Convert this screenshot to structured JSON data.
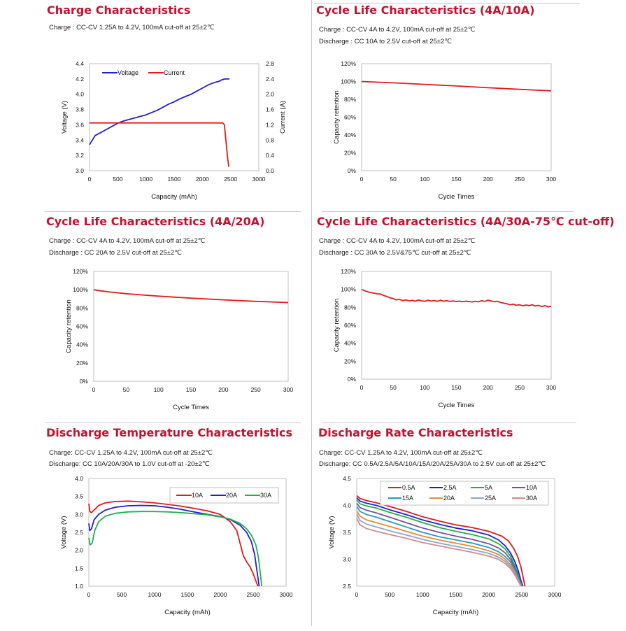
{
  "panels": [
    {
      "title": "Charge Characteristics",
      "notes": [
        "Charge : CC-CV 1.25A to 4.2V, 100mA cut-off at 25±2℃"
      ]
    },
    {
      "title": "Cycle Life Characteristics (4A/10A)",
      "notes": [
        "Charge : CC-CV 4A to 4.2V, 100mA cut-off at 25±2℃",
        "Discharge : CC 10A to 2.5V cut-off at 25±2℃"
      ]
    },
    {
      "title": "Cycle Life Characteristics (4A/20A)",
      "notes": [
        "Charge : CC-CV 4A to 4.2V, 100mA cut-off at 25±2℃",
        "Discharge : CC 20A to 2.5V cut-off at 25±2℃"
      ]
    },
    {
      "title": "Cycle Life Characteristics (4A/30A-75℃ cut-off)",
      "notes": [
        "Charge : CC-CV 4A to 4.2V, 100mA cut-off at 25±2℃",
        "Discharge : CC 30A to 2.5V&75℃ cut-off at 25±2℃"
      ]
    },
    {
      "title": "Discharge Temperature Characteristics",
      "notes": [
        "Charge: CC-CV 1.25A to 4.2V, 100mA cut-off at 25±2℃",
        "Discharge: CC 10A/20A/30A to 1.0V cut-off at -20±2℃"
      ]
    },
    {
      "title": "Discharge Rate Characteristics",
      "notes": [
        "Charge: CC-CV 1.25A to 4.2V, 100mA cut-off at 25±2℃",
        "Discharge: CC 0.5A/2.5A/5A/10A/15A/20A/25A/30A to 2.5V cut-off at 25±2℃"
      ]
    }
  ],
  "chart_data": [
    {
      "type": "line",
      "title": "Charge Characteristics",
      "xlabel": "Capacity (mAh)",
      "ylabel": "Voltage (V)",
      "y2label": "Current (A)",
      "xlim": [
        0,
        3000
      ],
      "ylim": [
        3.0,
        4.4
      ],
      "y2lim": [
        0,
        2.8
      ],
      "xticks": [
        "0",
        "500",
        "1000",
        "1500",
        "2000",
        "2500",
        "3000"
      ],
      "yticks": [
        "3.0",
        "3.2",
        "3.4",
        "3.6",
        "3.8",
        "4.0",
        "4.2",
        "4.4"
      ],
      "y2ticks": [
        "0.0",
        "0.4",
        "0.8",
        "1.2",
        "1.6",
        "2.0",
        "2.4",
        "2.8"
      ],
      "legend_position": "top-left",
      "series": [
        {
          "name": "Voltage",
          "color": "#1f1fd6",
          "axis": "y",
          "x": [
            0,
            50,
            100,
            200,
            300,
            400,
            500,
            600,
            700,
            800,
            900,
            1000,
            1100,
            1200,
            1300,
            1400,
            1500,
            1600,
            1700,
            1800,
            1900,
            2000,
            2100,
            2200,
            2300,
            2350,
            2400,
            2450,
            2480
          ],
          "y": [
            3.34,
            3.4,
            3.46,
            3.5,
            3.54,
            3.58,
            3.62,
            3.65,
            3.67,
            3.69,
            3.71,
            3.73,
            3.76,
            3.79,
            3.83,
            3.87,
            3.9,
            3.94,
            3.97,
            4.0,
            4.04,
            4.08,
            4.12,
            4.15,
            4.17,
            4.19,
            4.2,
            4.2,
            4.2
          ]
        },
        {
          "name": "Current",
          "color": "#e31b1b",
          "axis": "y2",
          "x": [
            0,
            500,
            1000,
            1500,
            2000,
            2300,
            2360,
            2390,
            2410,
            2430,
            2450,
            2470
          ],
          "y": [
            1.25,
            1.25,
            1.25,
            1.25,
            1.25,
            1.25,
            1.25,
            1.2,
            0.9,
            0.6,
            0.3,
            0.1
          ]
        }
      ]
    },
    {
      "type": "line",
      "title": "Cycle Life Characteristics (4A/10A)",
      "xlabel": "Cycle Times",
      "ylabel": "Capacity retention",
      "xlim": [
        0,
        300
      ],
      "ylim": [
        0,
        120
      ],
      "xticks": [
        "0",
        "50",
        "100",
        "150",
        "200",
        "250",
        "300"
      ],
      "yticks": [
        "0%",
        "20%",
        "40%",
        "60%",
        "80%",
        "100%",
        "120%"
      ],
      "series": [
        {
          "name": "Capacity retention",
          "color": "#e31b1b",
          "x": [
            0,
            50,
            100,
            150,
            200,
            250,
            300
          ],
          "y": [
            100,
            98.5,
            96.8,
            95.0,
            93.0,
            91.2,
            89.6
          ]
        }
      ]
    },
    {
      "type": "line",
      "title": "Cycle Life Characteristics (4A/20A)",
      "xlabel": "Cycle Times",
      "ylabel": "Capacity retention",
      "xlim": [
        0,
        300
      ],
      "ylim": [
        0,
        120
      ],
      "xticks": [
        "0",
        "50",
        "100",
        "150",
        "200",
        "250",
        "300"
      ],
      "yticks": [
        "0%",
        "20%",
        "40%",
        "60%",
        "80%",
        "100%",
        "120%"
      ],
      "series": [
        {
          "name": "Capacity retention",
          "color": "#e31b1b",
          "x": [
            0,
            10,
            25,
            50,
            75,
            100,
            150,
            200,
            250,
            300
          ],
          "y": [
            100,
            98.8,
            97.5,
            95.7,
            94.3,
            93.0,
            90.8,
            89.0,
            87.3,
            86.0
          ]
        }
      ]
    },
    {
      "type": "line",
      "title": "Cycle Life Characteristics (4A/30A-75℃ cut-off)",
      "xlabel": "Cycle Times",
      "ylabel": "Capacity retention",
      "xlim": [
        0,
        300
      ],
      "ylim": [
        0,
        120
      ],
      "xticks": [
        "0",
        "50",
        "100",
        "150",
        "200",
        "250",
        "300"
      ],
      "yticks": [
        "0%",
        "20%",
        "40%",
        "60%",
        "80%",
        "100%",
        "120%"
      ],
      "series": [
        {
          "name": "Capacity retention",
          "color": "#e31b1b",
          "x": [
            0,
            5,
            10,
            15,
            20,
            25,
            30,
            35,
            40,
            45,
            50,
            55,
            60,
            65,
            70,
            75,
            80,
            85,
            90,
            95,
            100,
            105,
            110,
            115,
            120,
            125,
            130,
            135,
            140,
            145,
            150,
            155,
            160,
            165,
            170,
            175,
            180,
            185,
            190,
            195,
            200,
            205,
            210,
            215,
            220,
            225,
            230,
            235,
            240,
            245,
            250,
            255,
            260,
            265,
            270,
            275,
            280,
            285,
            290,
            295,
            300
          ],
          "y": [
            100,
            98.5,
            97.2,
            96.4,
            95.8,
            95.1,
            94.8,
            93.2,
            92.0,
            90.6,
            89.8,
            88.2,
            88.9,
            87.5,
            88.3,
            87.1,
            87.8,
            86.9,
            88.1,
            87.3,
            86.7,
            87.9,
            87.0,
            87.6,
            86.8,
            87.9,
            86.9,
            87.4,
            86.5,
            87.2,
            86.4,
            87.0,
            86.2,
            86.9,
            86.4,
            86.0,
            86.8,
            86.1,
            87.4,
            86.6,
            88.0,
            87.1,
            86.2,
            86.8,
            85.4,
            84.6,
            83.9,
            82.8,
            83.5,
            82.3,
            82.9,
            81.7,
            82.6,
            81.9,
            82.8,
            81.5,
            82.2,
            80.9,
            81.8,
            80.6,
            81.2
          ]
        }
      ]
    },
    {
      "type": "line",
      "title": "Discharge Temperature Characteristics",
      "xlabel": "Capacity (mAh)",
      "ylabel": "Voltage (V)",
      "xlim": [
        0,
        3000
      ],
      "ylim": [
        1.0,
        4.0
      ],
      "xticks": [
        "0",
        "500",
        "1000",
        "1500",
        "2000",
        "2500",
        "3000"
      ],
      "yticks": [
        "1.0",
        "1.5",
        "2.0",
        "2.5",
        "3.0",
        "3.5",
        "4.0"
      ],
      "legend_position": "top-right",
      "series": [
        {
          "name": "10A",
          "color": "#e31b1b",
          "x": [
            0,
            15,
            40,
            80,
            150,
            250,
            400,
            600,
            800,
            1000,
            1200,
            1400,
            1600,
            1800,
            2000,
            2150,
            2250,
            2300,
            2350,
            2400,
            2450,
            2500,
            2540,
            2570
          ],
          "y": [
            3.3,
            3.08,
            3.05,
            3.12,
            3.25,
            3.32,
            3.36,
            3.37,
            3.35,
            3.32,
            3.28,
            3.23,
            3.17,
            3.1,
            3.0,
            2.8,
            2.55,
            2.2,
            1.85,
            1.68,
            1.55,
            1.35,
            1.15,
            1.0
          ]
        },
        {
          "name": "20A",
          "color": "#1f1fd6",
          "x": [
            0,
            15,
            40,
            80,
            150,
            250,
            400,
            600,
            800,
            1000,
            1200,
            1400,
            1600,
            1800,
            2000,
            2150,
            2300,
            2400,
            2470,
            2520,
            2560,
            2590
          ],
          "y": [
            2.75,
            2.55,
            2.6,
            2.85,
            3.0,
            3.12,
            3.2,
            3.24,
            3.25,
            3.24,
            3.2,
            3.14,
            3.07,
            3.0,
            2.94,
            2.86,
            2.7,
            2.5,
            2.25,
            1.9,
            1.4,
            1.0
          ]
        },
        {
          "name": "30A",
          "color": "#20b14a",
          "x": [
            0,
            20,
            50,
            90,
            150,
            250,
            400,
            600,
            800,
            1000,
            1200,
            1400,
            1600,
            1800,
            2000,
            2150,
            2300,
            2400,
            2480,
            2540,
            2580,
            2610,
            2630
          ],
          "y": [
            2.35,
            2.15,
            2.2,
            2.55,
            2.8,
            2.95,
            3.03,
            3.07,
            3.08,
            3.08,
            3.07,
            3.05,
            3.02,
            2.99,
            2.93,
            2.87,
            2.75,
            2.6,
            2.4,
            2.15,
            1.8,
            1.35,
            1.0
          ]
        }
      ]
    },
    {
      "type": "line",
      "title": "Discharge Rate Characteristics",
      "xlabel": "Capacity (mAh)",
      "ylabel": "Voltage (V)",
      "xlim": [
        0,
        3000
      ],
      "ylim": [
        2.5,
        4.5
      ],
      "xticks": [
        "0",
        "500",
        "1000",
        "1500",
        "2000",
        "2500",
        "3000"
      ],
      "yticks": [
        "2.5",
        "3.0",
        "3.5",
        "4.0",
        "4.5"
      ],
      "legend_position": "top",
      "series": [
        {
          "name": "0.5A",
          "color": "#e31b1b",
          "x": [
            0,
            50,
            150,
            300,
            500,
            750,
            1000,
            1250,
            1500,
            1750,
            2000,
            2200,
            2300,
            2380,
            2440,
            2490,
            2530,
            2550
          ],
          "y": [
            4.18,
            4.13,
            4.09,
            4.05,
            3.98,
            3.89,
            3.79,
            3.71,
            3.64,
            3.59,
            3.52,
            3.43,
            3.34,
            3.2,
            3.05,
            2.85,
            2.62,
            2.5
          ]
        },
        {
          "name": "2.5A",
          "color": "#1f1fd6",
          "x": [
            0,
            50,
            150,
            300,
            500,
            750,
            1000,
            1250,
            1500,
            1750,
            2000,
            2150,
            2250,
            2330,
            2400,
            2450,
            2490,
            2520
          ],
          "y": [
            4.14,
            4.08,
            4.04,
            4.0,
            3.92,
            3.83,
            3.73,
            3.65,
            3.58,
            3.53,
            3.45,
            3.36,
            3.25,
            3.12,
            2.95,
            2.78,
            2.6,
            2.5
          ]
        },
        {
          "name": "5A",
          "color": "#20b14a",
          "x": [
            0,
            50,
            150,
            300,
            500,
            750,
            1000,
            1250,
            1500,
            1750,
            2000,
            2150,
            2250,
            2330,
            2390,
            2440,
            2480,
            2510
          ],
          "y": [
            4.1,
            4.03,
            3.99,
            3.95,
            3.87,
            3.78,
            3.68,
            3.59,
            3.52,
            3.46,
            3.38,
            3.29,
            3.19,
            3.06,
            2.9,
            2.74,
            2.58,
            2.5
          ]
        },
        {
          "name": "10A",
          "color": "#7a4f9a",
          "x": [
            0,
            50,
            150,
            300,
            500,
            750,
            1000,
            1250,
            1500,
            1750,
            2000,
            2150,
            2250,
            2330,
            2390,
            2440,
            2480,
            2500
          ],
          "y": [
            4.04,
            3.96,
            3.91,
            3.86,
            3.78,
            3.68,
            3.58,
            3.5,
            3.43,
            3.37,
            3.29,
            3.21,
            3.12,
            3.0,
            2.86,
            2.7,
            2.56,
            2.5
          ]
        },
        {
          "name": "15A",
          "color": "#1d9ec7",
          "x": [
            0,
            50,
            150,
            300,
            500,
            750,
            1000,
            1250,
            1500,
            1750,
            2000,
            2150,
            2250,
            2330,
            2390,
            2440,
            2480,
            2500
          ],
          "y": [
            3.98,
            3.89,
            3.83,
            3.78,
            3.7,
            3.6,
            3.5,
            3.42,
            3.36,
            3.3,
            3.22,
            3.14,
            3.05,
            2.95,
            2.82,
            2.68,
            2.55,
            2.5
          ]
        },
        {
          "name": "20A",
          "color": "#ef8a2b",
          "x": [
            0,
            50,
            150,
            300,
            500,
            750,
            1000,
            1250,
            1500,
            1750,
            2000,
            2150,
            2250,
            2330,
            2390,
            2440,
            2480,
            2500
          ],
          "y": [
            3.9,
            3.8,
            3.73,
            3.68,
            3.61,
            3.52,
            3.43,
            3.36,
            3.3,
            3.24,
            3.16,
            3.09,
            3.0,
            2.9,
            2.78,
            2.65,
            2.54,
            2.5
          ]
        },
        {
          "name": "25A",
          "color": "#8aa6cf",
          "x": [
            0,
            50,
            150,
            300,
            500,
            750,
            1000,
            1250,
            1500,
            1750,
            2000,
            2150,
            2250,
            2330,
            2390,
            2440,
            2480,
            2500
          ],
          "y": [
            3.84,
            3.72,
            3.65,
            3.6,
            3.53,
            3.45,
            3.37,
            3.3,
            3.24,
            3.18,
            3.11,
            3.04,
            2.96,
            2.86,
            2.75,
            2.63,
            2.53,
            2.5
          ]
        },
        {
          "name": "30A",
          "color": "#d48a8a",
          "x": [
            0,
            50,
            150,
            300,
            500,
            750,
            1000,
            1250,
            1500,
            1750,
            2000,
            2150,
            2250,
            2330,
            2390,
            2440,
            2480,
            2500
          ],
          "y": [
            3.76,
            3.64,
            3.57,
            3.52,
            3.46,
            3.39,
            3.31,
            3.25,
            3.19,
            3.13,
            3.06,
            3.0,
            2.92,
            2.83,
            2.72,
            2.61,
            2.52,
            2.5
          ]
        }
      ]
    }
  ]
}
